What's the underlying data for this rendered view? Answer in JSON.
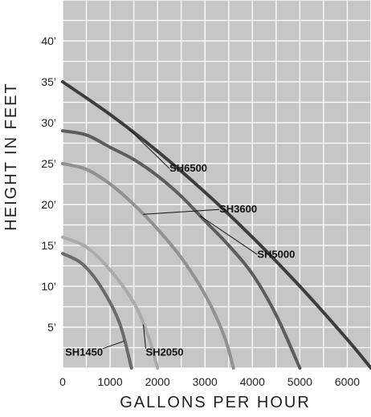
{
  "chart_data": {
    "type": "line",
    "title": "",
    "xlabel": "GALLONS PER HOUR",
    "ylabel": "HEIGHT IN FEET",
    "xlim": [
      0,
      6500
    ],
    "ylim": [
      0,
      45
    ],
    "x_ticks": [
      {
        "value": 0,
        "label": "0"
      },
      {
        "value": 1000,
        "label": "1000"
      },
      {
        "value": 2000,
        "label": "2000"
      },
      {
        "value": 3000,
        "label": "3000"
      },
      {
        "value": 4000,
        "label": "4000"
      },
      {
        "value": 5000,
        "label": "5000"
      },
      {
        "value": 6000,
        "label": "6000"
      }
    ],
    "y_ticks": [
      {
        "value": 5,
        "label": "5’"
      },
      {
        "value": 10,
        "label": "10’"
      },
      {
        "value": 15,
        "label": "15’"
      },
      {
        "value": 20,
        "label": "20’"
      },
      {
        "value": 25,
        "label": "25’"
      },
      {
        "value": 30,
        "label": "30’"
      },
      {
        "value": 35,
        "label": "35’"
      },
      {
        "value": 40,
        "label": "40’"
      }
    ],
    "grid": true,
    "x_minor_step": 500,
    "y_minor_step": 2.5,
    "plot_background": "#c6c6c6",
    "grid_color": "#ffffff",
    "series": [
      {
        "name": "SH6500",
        "color": "#3d3d3d",
        "points": [
          [
            0,
            35
          ],
          [
            1000,
            31
          ],
          [
            2000,
            26.5
          ],
          [
            3000,
            21.5
          ],
          [
            4000,
            16
          ],
          [
            5000,
            10
          ],
          [
            6000,
            3.5
          ],
          [
            6500,
            0
          ]
        ],
        "label_point": [
          2650,
          24
        ]
      },
      {
        "name": "SH5000",
        "color": "#5c5c5c",
        "points": [
          [
            0,
            29
          ],
          [
            500,
            28.5
          ],
          [
            1000,
            27
          ],
          [
            1500,
            25.5
          ],
          [
            2000,
            23.5
          ],
          [
            2500,
            21
          ],
          [
            3000,
            18
          ],
          [
            3500,
            15
          ],
          [
            4000,
            11.5
          ],
          [
            4500,
            6.5
          ],
          [
            5000,
            0
          ]
        ],
        "label_point": [
          4500,
          13.5
        ]
      },
      {
        "name": "SH3600",
        "color": "#919191",
        "points": [
          [
            0,
            25
          ],
          [
            500,
            24.3
          ],
          [
            1000,
            22.5
          ],
          [
            1500,
            20
          ],
          [
            2000,
            17
          ],
          [
            2500,
            13.5
          ],
          [
            3000,
            9
          ],
          [
            3400,
            4
          ],
          [
            3600,
            0
          ]
        ],
        "label_point": [
          3700,
          19
        ]
      },
      {
        "name": "SH2050",
        "color": "#aaaaaa",
        "points": [
          [
            0,
            16
          ],
          [
            500,
            14.8
          ],
          [
            1000,
            12
          ],
          [
            1500,
            8
          ],
          [
            1800,
            4
          ],
          [
            2000,
            0
          ]
        ],
        "label_point": [
          2150,
          1.5
        ]
      },
      {
        "name": "SH1450",
        "color": "#6a6a6a",
        "points": [
          [
            0,
            14
          ],
          [
            400,
            12.8
          ],
          [
            800,
            10
          ],
          [
            1200,
            5.5
          ],
          [
            1450,
            0
          ]
        ],
        "label_point": [
          450,
          1.5
        ]
      }
    ]
  }
}
